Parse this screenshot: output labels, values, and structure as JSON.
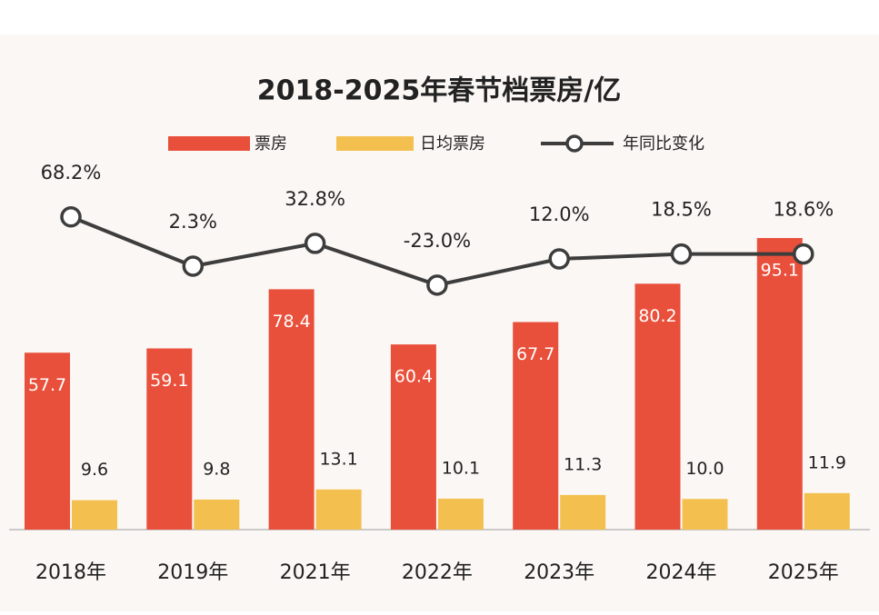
{
  "chart_data": {
    "type": "bar-line",
    "title": "2018-2025年春节档票房/亿",
    "categories": [
      "2018年",
      "2019年",
      "2021年",
      "2022年",
      "2023年",
      "2024年",
      "2025年"
    ],
    "series": [
      {
        "name": "票房",
        "type": "bar",
        "color": "#e9503b",
        "values": [
          57.7,
          59.1,
          78.4,
          60.4,
          67.7,
          80.2,
          95.1
        ]
      },
      {
        "name": "日均票房",
        "type": "bar",
        "color": "#f3c04f",
        "values": [
          9.6,
          9.8,
          13.1,
          10.1,
          11.3,
          10.0,
          11.9
        ],
        "value_labels": [
          "9.6",
          "9.8",
          "13.1",
          "10.1",
          "11.3",
          "10.0",
          "11.9"
        ]
      },
      {
        "name": "年同比变化",
        "type": "line",
        "axis": "y2",
        "color": "#3d3d3d",
        "values": [
          68.2,
          2.3,
          32.8,
          -23.0,
          12.0,
          18.5,
          18.6
        ],
        "value_labels": [
          "68.2%",
          "2.3%",
          "32.8%",
          "-23.0%",
          "12.0%",
          "18.5%",
          "18.6%"
        ]
      }
    ],
    "ylim": [
      0,
      100
    ],
    "y2lim": [
      -350,
      60
    ],
    "legend": "top"
  }
}
